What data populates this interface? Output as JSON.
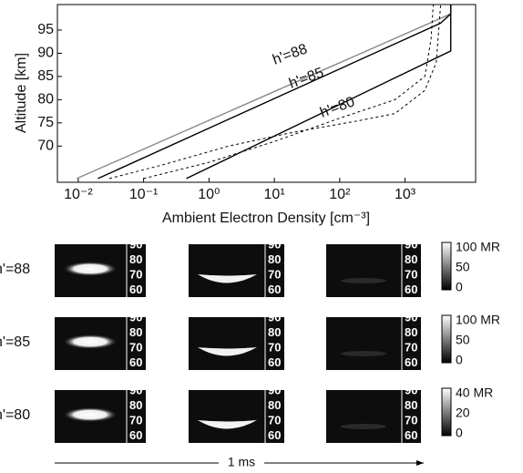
{
  "chart_data": {
    "type": "line",
    "x_label": "Ambient Electron Density [cm⁻³]",
    "y_label": "Altitude [km]",
    "log_x": true,
    "xlim": [
      0.0048,
      12000
    ],
    "ylim": [
      62.2,
      100.5
    ],
    "xticks": [
      {
        "value": 0.01,
        "label": "10⁻²"
      },
      {
        "value": 0.1,
        "label": "10⁻¹"
      },
      {
        "value": 1,
        "label": "10⁰"
      },
      {
        "value": 10,
        "label": "10¹"
      },
      {
        "value": 100,
        "label": "10²"
      },
      {
        "value": 1000,
        "label": "10³"
      }
    ],
    "yticks": [
      70,
      75,
      80,
      85,
      90,
      95
    ],
    "series": [
      {
        "name": "h'=88",
        "color": "#8a8a8a",
        "dashed": false,
        "x": [
          0.0095,
          5000
        ],
        "values": [
          63,
          98.5
        ]
      },
      {
        "name": "h'=85",
        "color": "#000000",
        "dashed": false,
        "x": [
          0.02,
          3500,
          5000,
          5000
        ],
        "values": [
          63,
          96.5,
          98.5,
          100.5
        ]
      },
      {
        "name": "h'=80",
        "color": "#000000",
        "dashed": false,
        "x": [
          0.45,
          5000,
          5000
        ],
        "values": [
          63,
          90.5,
          100.5
        ]
      },
      {
        "color": "#000000",
        "dashed": true,
        "x": [
          0.03,
          0.2,
          2,
          20,
          200,
          700,
          2000,
          3000,
          3500
        ],
        "values": [
          63,
          66,
          70,
          73,
          75.5,
          77,
          82,
          88,
          100.5
        ]
      },
      {
        "color": "#000000",
        "dashed": true,
        "x": [
          0.1,
          1,
          10,
          100,
          700,
          2000,
          2500,
          2700
        ],
        "values": [
          63,
          66.5,
          71,
          76,
          80,
          85,
          93,
          100.5
        ]
      }
    ]
  },
  "panels": {
    "altitude_ticks": [
      "90",
      "80",
      "70",
      "60"
    ],
    "rows": [
      {
        "label": "h'=88",
        "colorbar": [
          "100 MR",
          "50",
          "0"
        ]
      },
      {
        "label": "h'=85",
        "colorbar": [
          "100 MR",
          "50",
          "0"
        ]
      },
      {
        "label": "h'=80",
        "colorbar": [
          "40 MR",
          "20",
          "0"
        ]
      }
    ],
    "time_label": "1 ms"
  }
}
